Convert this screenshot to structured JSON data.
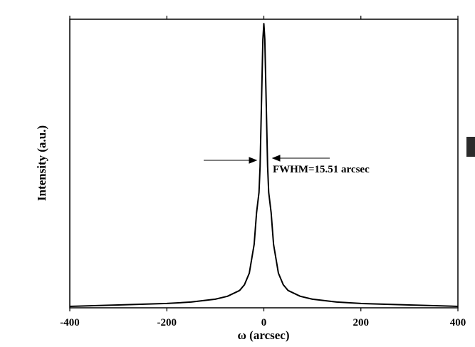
{
  "chart_data": {
    "type": "line",
    "x_label": "ω  (arcsec)",
    "y_label": "Intensity (a.u.)",
    "annotation": "FWHM=15.51 arcsec",
    "x": [
      -400,
      -300,
      -200,
      -150,
      -100,
      -75,
      -50,
      -40,
      -30,
      -20,
      -15,
      -10,
      -7.75,
      -5,
      -2,
      0,
      2,
      5,
      7.75,
      10,
      15,
      20,
      30,
      40,
      50,
      75,
      100,
      150,
      200,
      300,
      400
    ],
    "series": [
      {
        "color": "#000000",
        "values": [
          0.005,
          0.01,
          0.015,
          0.02,
          0.03,
          0.04,
          0.06,
          0.08,
          0.12,
          0.22,
          0.33,
          0.4,
          0.49,
          0.7,
          0.93,
          0.985,
          0.93,
          0.7,
          0.49,
          0.4,
          0.33,
          0.22,
          0.12,
          0.08,
          0.06,
          0.04,
          0.03,
          0.02,
          0.015,
          0.01,
          0.005
        ]
      }
    ],
    "xlim": [
      -400,
      400
    ],
    "xticks": [
      -400,
      -200,
      0,
      200,
      400
    ],
    "ylim": [
      0,
      1
    ]
  }
}
